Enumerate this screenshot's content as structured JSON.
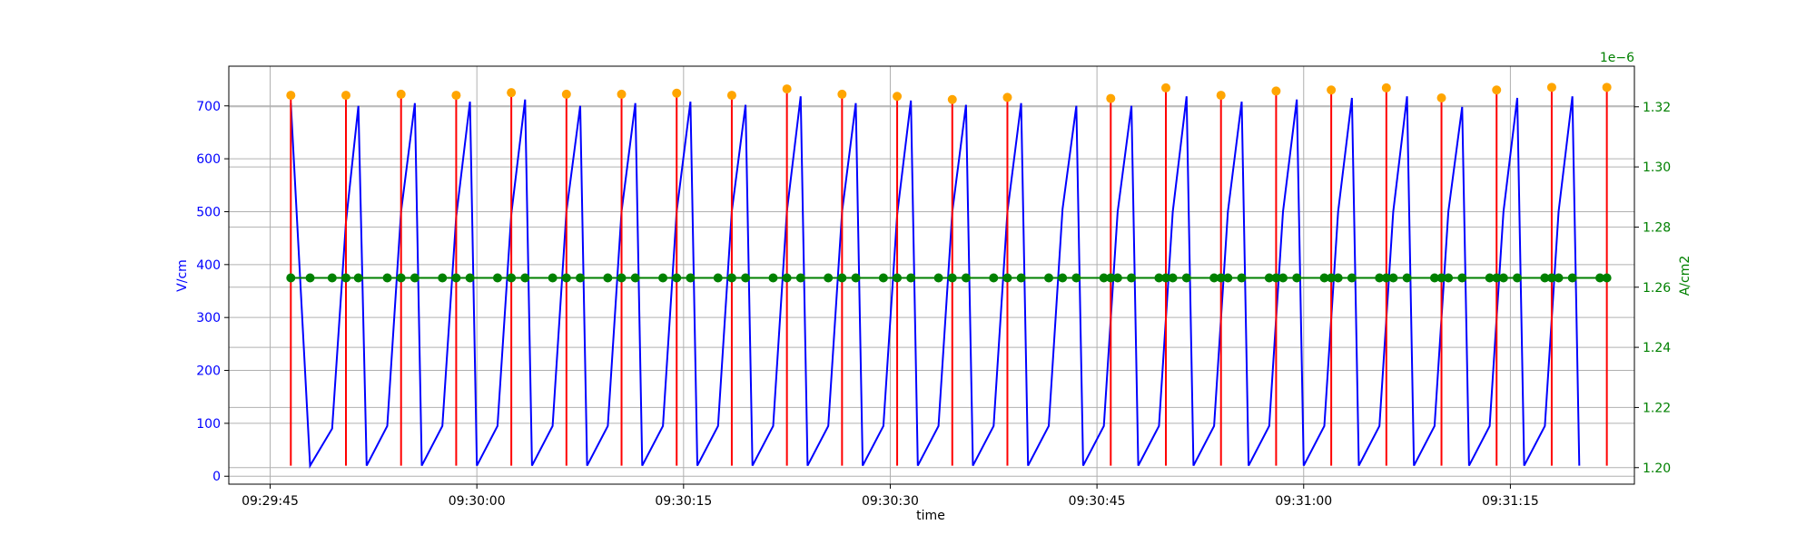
{
  "chart_data": {
    "type": "line",
    "title": "",
    "xlabel": "time",
    "ylabel_left": "V/cm",
    "ylabel_right": "A/cm2",
    "right_axis_offset_label": "1e−6",
    "x_tick_labels": [
      "09:29:45",
      "09:30:00",
      "09:30:15",
      "09:30:30",
      "09:30:45",
      "09:31:00",
      "09:31:15"
    ],
    "x_tick_seconds": [
      0,
      15,
      30,
      45,
      60,
      75,
      90
    ],
    "xlim_seconds": [
      -3,
      99
    ],
    "left_ticks": [
      0,
      100,
      200,
      300,
      400,
      500,
      600,
      700
    ],
    "left_ylim": [
      -15,
      775
    ],
    "right_tick_labels": [
      "1.20",
      "1.22",
      "1.24",
      "1.26",
      "1.28",
      "1.30",
      "1.32"
    ],
    "right_ticks": [
      1.2,
      1.22,
      1.24,
      1.26,
      1.28,
      1.3,
      1.32
    ],
    "right_ylim": [
      1.1945,
      1.3335
    ],
    "grid": true,
    "colors": {
      "field": "#0000ff",
      "pulses": "#ff0000",
      "peaks": "#ffa500",
      "current": "#008000",
      "right_axis": "#008000",
      "left_axis": "#0000ff"
    },
    "series": [
      {
        "name": "",
        "kind": "line",
        "axis": "left",
        "color": "#0000ff",
        "x_seconds": [
          1.5,
          2.9,
          4.5,
          5.5,
          6.4,
          7.0,
          8.5,
          9.5,
          10.5,
          11.0,
          12.5,
          13.5,
          14.5,
          15.0,
          16.5,
          17.5,
          18.5,
          19.0,
          20.5,
          21.5,
          22.5,
          23.0,
          24.5,
          25.5,
          26.5,
          27.0,
          28.5,
          29.5,
          30.5,
          31.0,
          32.5,
          33.5,
          34.5,
          35.0,
          36.5,
          37.5,
          38.5,
          39.0,
          40.5,
          41.5,
          42.5,
          43.0,
          44.5,
          45.5,
          46.5,
          47.0,
          48.5,
          49.5,
          50.5,
          51.0,
          52.5,
          53.5,
          54.5,
          55.0,
          56.5,
          57.5,
          58.5,
          59.0,
          60.5,
          61.5,
          62.5,
          63.0,
          64.5,
          65.5,
          66.5,
          67.0,
          68.5,
          69.5,
          70.5,
          71.0,
          72.5,
          73.5,
          74.5,
          75.0,
          76.5,
          77.5,
          78.5,
          79.0,
          80.5,
          81.5,
          82.5,
          83.0,
          84.5,
          85.5,
          86.5,
          87.0,
          88.5,
          89.5,
          90.5,
          91.0,
          92.5,
          93.5,
          94.5,
          95.0
        ],
        "values": [
          705,
          20,
          90,
          480,
          700,
          20,
          95,
          500,
          705,
          20,
          95,
          490,
          708,
          20,
          95,
          495,
          712,
          20,
          95,
          500,
          700,
          20,
          95,
          500,
          705,
          20,
          95,
          500,
          708,
          20,
          95,
          500,
          702,
          20,
          95,
          500,
          718,
          20,
          95,
          500,
          705,
          20,
          95,
          495,
          710,
          20,
          95,
          500,
          702,
          20,
          95,
          500,
          705,
          20,
          95,
          505,
          700,
          20,
          95,
          500,
          700,
          20,
          95,
          500,
          718,
          20,
          95,
          500,
          708,
          20,
          95,
          500,
          712,
          20,
          95,
          500,
          715,
          20,
          95,
          500,
          718,
          20,
          95,
          500,
          698,
          20,
          95,
          500,
          715,
          20,
          95,
          500,
          718,
          20
        ]
      },
      {
        "name": "",
        "kind": "stem",
        "axis": "left",
        "color": "#ff0000",
        "x_seconds": [
          1.5,
          5.5,
          9.5,
          13.5,
          17.5,
          21.5,
          25.5,
          29.5,
          33.5,
          37.5,
          41.5,
          45.5,
          49.5,
          53.5,
          61.0,
          65.0,
          69.0,
          73.0,
          77.0,
          81.0,
          85.0,
          89.0,
          93.0,
          97.0
        ],
        "values": [
          720,
          720,
          722,
          720,
          725,
          722,
          722,
          724,
          720,
          732,
          722,
          718,
          712,
          716,
          714,
          734,
          720,
          728,
          730,
          734,
          715,
          730,
          735,
          735
        ]
      },
      {
        "name": "",
        "kind": "scatter",
        "axis": "left",
        "color": "#ffa500",
        "x_seconds": [
          1.5,
          5.5,
          9.5,
          13.5,
          17.5,
          21.5,
          25.5,
          29.5,
          33.5,
          37.5,
          41.5,
          45.5,
          49.5,
          53.5,
          61.0,
          65.0,
          69.0,
          73.0,
          77.0,
          81.0,
          85.0,
          89.0,
          93.0,
          97.0
        ],
        "values": [
          720,
          720,
          722,
          720,
          725,
          722,
          722,
          724,
          720,
          732,
          722,
          718,
          712,
          716,
          714,
          734,
          720,
          728,
          730,
          734,
          715,
          730,
          735,
          735
        ]
      },
      {
        "name": "",
        "kind": "line-markers",
        "axis": "right",
        "color": "#008000",
        "x_seconds": [
          1.5,
          2.9,
          4.5,
          5.5,
          6.4,
          8.5,
          9.5,
          10.5,
          12.5,
          13.5,
          14.5,
          16.5,
          17.5,
          18.5,
          20.5,
          21.5,
          22.5,
          24.5,
          25.5,
          26.5,
          28.5,
          29.5,
          30.5,
          32.5,
          33.5,
          34.5,
          36.5,
          37.5,
          38.5,
          40.5,
          41.5,
          42.5,
          44.5,
          45.5,
          46.5,
          48.5,
          49.5,
          50.5,
          52.5,
          53.5,
          54.5,
          56.5,
          57.5,
          58.5,
          60.5,
          61.0,
          61.5,
          62.5,
          64.5,
          65.0,
          65.5,
          66.5,
          68.5,
          69.0,
          69.5,
          70.5,
          72.5,
          73.0,
          73.5,
          74.5,
          76.5,
          77.0,
          77.5,
          78.5,
          80.5,
          81.0,
          81.5,
          82.5,
          84.5,
          85.0,
          85.5,
          86.5,
          88.5,
          89.0,
          89.5,
          90.5,
          92.5,
          93.0,
          93.5,
          94.5,
          96.5,
          97.0
        ],
        "values": [
          1.2631,
          1.2631,
          1.2631,
          1.2631,
          1.2631,
          1.2631,
          1.2631,
          1.2631,
          1.2631,
          1.2631,
          1.2631,
          1.2631,
          1.2631,
          1.2631,
          1.2631,
          1.2631,
          1.2631,
          1.2631,
          1.2631,
          1.2631,
          1.2631,
          1.2631,
          1.2631,
          1.2631,
          1.2631,
          1.2631,
          1.2631,
          1.2631,
          1.2631,
          1.2631,
          1.2631,
          1.2631,
          1.2631,
          1.2631,
          1.2631,
          1.2631,
          1.2631,
          1.2631,
          1.2631,
          1.2631,
          1.2631,
          1.2631,
          1.2631,
          1.2631,
          1.2631,
          1.2631,
          1.2631,
          1.2631,
          1.2631,
          1.2631,
          1.2631,
          1.2631,
          1.2631,
          1.2631,
          1.2631,
          1.2631,
          1.2631,
          1.2631,
          1.2631,
          1.2631,
          1.2631,
          1.2631,
          1.2631,
          1.2631,
          1.2631,
          1.2631,
          1.2631,
          1.2631,
          1.2631,
          1.2631,
          1.2631,
          1.2631,
          1.2631,
          1.2631,
          1.2631,
          1.2631,
          1.2631,
          1.2631,
          1.2631,
          1.2631,
          1.2631,
          1.2631
        ]
      }
    ]
  }
}
